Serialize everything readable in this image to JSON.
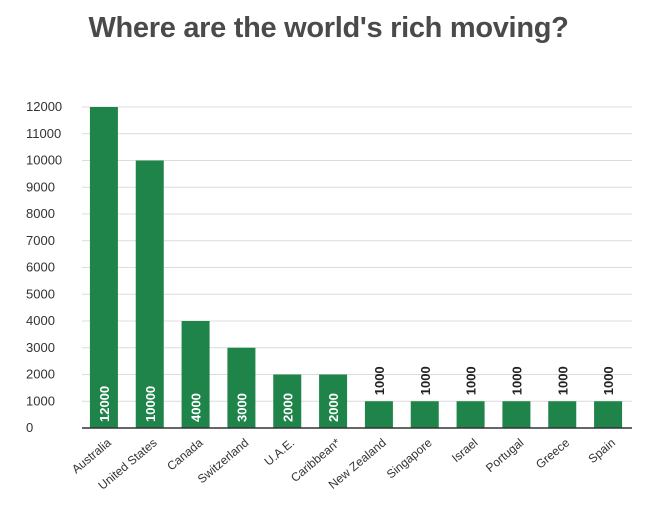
{
  "chart_data": {
    "type": "bar",
    "title": "Where are the world's rich moving?",
    "categories": [
      "Australia",
      "United States",
      "Canada",
      "Switzerland",
      "U.A.E.",
      "Caribbean*",
      "New Zealand",
      "Singapore",
      "Israel",
      "Portugal",
      "Greece",
      "Spain"
    ],
    "values": [
      12000,
      10000,
      4000,
      3000,
      2000,
      2000,
      1000,
      1000,
      1000,
      1000,
      1000,
      1000
    ],
    "value_labels": [
      "12000",
      "10000",
      "4000",
      "3000",
      "2000",
      "2000",
      "1000",
      "1000",
      "1000",
      "1000",
      "1000",
      "1000"
    ],
    "yticks": [
      0,
      1000,
      2000,
      3000,
      4000,
      5000,
      6000,
      7000,
      8000,
      9000,
      10000,
      11000,
      12000
    ],
    "ytick_labels": [
      "0",
      "1000",
      "2000",
      "3000",
      "4000",
      "5000",
      "6000",
      "7000",
      "8000",
      "9000",
      "10000",
      "11000",
      "12000"
    ],
    "ylim": [
      0,
      12000
    ],
    "xlabel": "",
    "ylabel": "",
    "grid": true,
    "legend": "none",
    "bar_color": "#1e8449",
    "label_color_inside": "#ffffff",
    "label_color_outside": "#222222"
  }
}
